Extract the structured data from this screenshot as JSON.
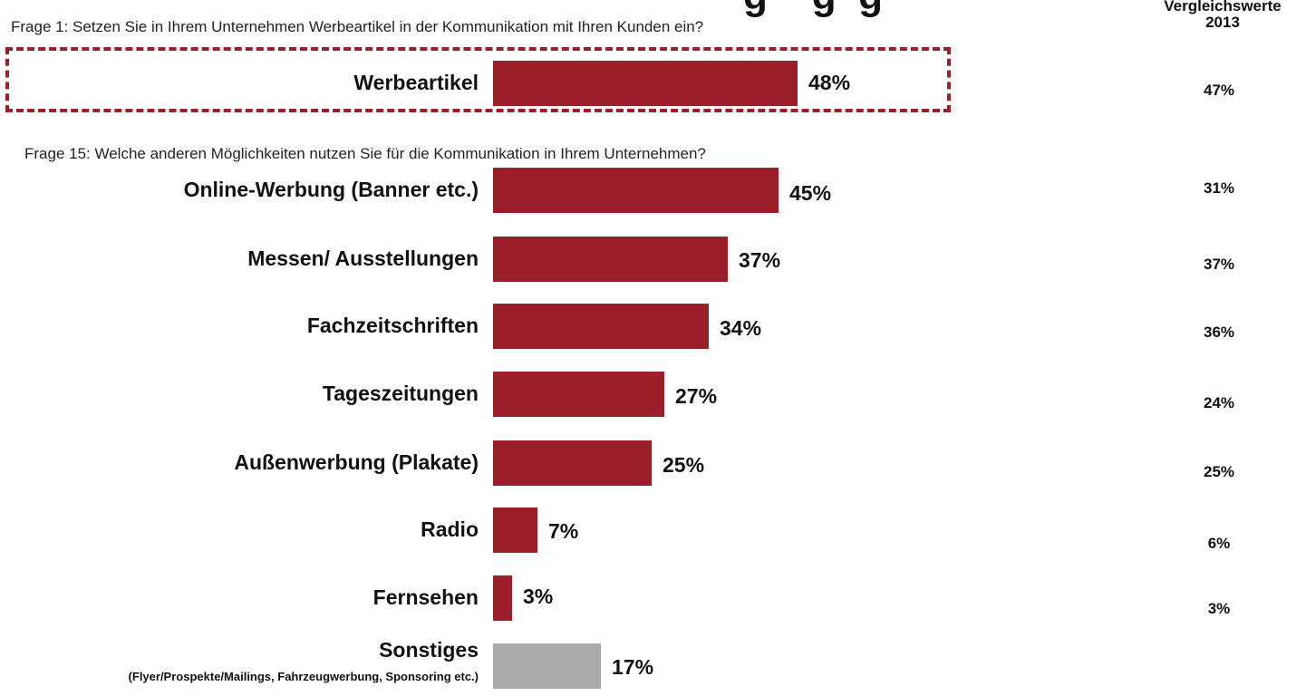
{
  "question_1": "Frage 1: Setzen Sie in Ihrem Unternehmen Werbeartikel in der Kommunikation mit Ihren Kunden ein?",
  "question_15": "Frage 15: Welche anderen Möglichkeiten nutzen Sie für die Kommunikation in Ihrem Unternehmen?",
  "comparison_header": {
    "line1": "Vergleichswerte",
    "line2": "2013"
  },
  "colors": {
    "bar": "#9b1f2b",
    "bar_other": "#aaaaaa",
    "highlight_border": "#9b1f2b"
  },
  "chart_data": {
    "type": "bar",
    "orientation": "horizontal",
    "unit": "%",
    "categories": [
      "Werbeartikel",
      "Online-Werbung (Banner etc.)",
      "Messen/ Ausstellungen",
      "Fachzeitschriften",
      "Tageszeitungen",
      "Außenwerbung (Plakate)",
      "Radio",
      "Fernsehen",
      "Sonstiges"
    ],
    "category_notes": [
      "",
      "",
      "",
      "",
      "",
      "",
      "",
      "",
      "(Flyer/Prospekte/Mailings, Fahrzeugwerbung, Sponsoring etc.)"
    ],
    "values": [
      48,
      45,
      37,
      34,
      27,
      25,
      7,
      3,
      17
    ],
    "value_labels": [
      "48%",
      "45%",
      "37%",
      "34%",
      "27%",
      "25%",
      "7%",
      "3%",
      "17%"
    ],
    "comparison_2013": [
      "47%",
      "31%",
      "37%",
      "36%",
      "24%",
      "25%",
      "6%",
      "3%",
      ""
    ],
    "highlighted_category": "Werbeartikel",
    "xlim": [
      0,
      100
    ],
    "grid": false,
    "legend": "none"
  }
}
